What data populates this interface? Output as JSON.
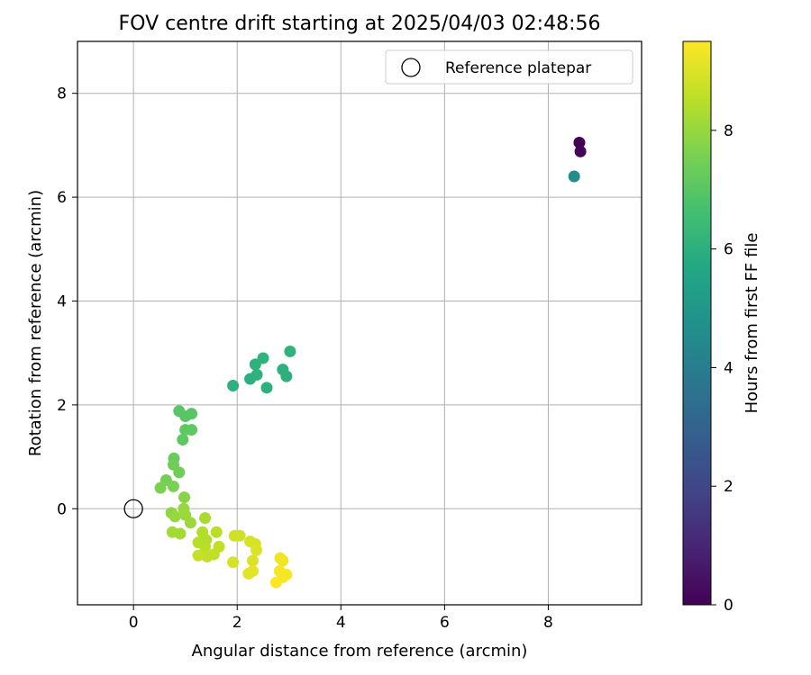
{
  "chart_data": {
    "type": "scatter",
    "title": "FOV centre drift starting at 2025/04/03 02:48:56",
    "xlabel": "Angular distance from reference (arcmin)",
    "ylabel": "Rotation from reference (arcmin)",
    "xlim": [
      -1.08,
      9.8
    ],
    "ylim": [
      -1.85,
      9.0
    ],
    "xticks": [
      0,
      2,
      4,
      6,
      8
    ],
    "yticks": [
      0,
      2,
      4,
      6,
      8
    ],
    "grid": true,
    "legend": {
      "position": "top-right",
      "entries": [
        "Reference platepar"
      ]
    },
    "reference_point": {
      "name": "Reference platepar",
      "x": 0,
      "y": 0,
      "marker": "hollow-circle"
    },
    "colorbar": {
      "label": "Hours from first FF file",
      "range": [
        0,
        9.5
      ],
      "ticks": [
        0,
        2,
        4,
        6,
        8
      ],
      "colormap": "viridis"
    },
    "series": [
      {
        "name": "FOV centre",
        "colored_by": "Hours from first FF file",
        "points": [
          {
            "x": 8.6,
            "y": 7.05,
            "c": 0.0
          },
          {
            "x": 8.62,
            "y": 6.88,
            "c": 0.1
          },
          {
            "x": 8.5,
            "y": 6.4,
            "c": 4.6
          },
          {
            "x": 1.92,
            "y": 2.37,
            "c": 6.0
          },
          {
            "x": 2.25,
            "y": 2.5,
            "c": 6.0
          },
          {
            "x": 2.35,
            "y": 2.78,
            "c": 6.0
          },
          {
            "x": 2.38,
            "y": 2.58,
            "c": 6.1
          },
          {
            "x": 2.5,
            "y": 2.9,
            "c": 6.1
          },
          {
            "x": 2.57,
            "y": 2.33,
            "c": 6.0
          },
          {
            "x": 2.88,
            "y": 2.68,
            "c": 6.0
          },
          {
            "x": 2.95,
            "y": 2.55,
            "c": 6.0
          },
          {
            "x": 3.02,
            "y": 3.03,
            "c": 6.1
          },
          {
            "x": 0.88,
            "y": 1.88,
            "c": 7.0
          },
          {
            "x": 1.0,
            "y": 1.78,
            "c": 7.0
          },
          {
            "x": 1.12,
            "y": 1.83,
            "c": 7.0
          },
          {
            "x": 1.0,
            "y": 1.52,
            "c": 7.1
          },
          {
            "x": 1.12,
            "y": 1.52,
            "c": 7.1
          },
          {
            "x": 0.95,
            "y": 1.33,
            "c": 7.1
          },
          {
            "x": 0.78,
            "y": 0.97,
            "c": 7.3
          },
          {
            "x": 0.77,
            "y": 0.85,
            "c": 7.4
          },
          {
            "x": 0.88,
            "y": 0.7,
            "c": 7.4
          },
          {
            "x": 0.63,
            "y": 0.55,
            "c": 7.5
          },
          {
            "x": 0.52,
            "y": 0.4,
            "c": 7.6
          },
          {
            "x": 0.77,
            "y": 0.43,
            "c": 7.6
          },
          {
            "x": 0.98,
            "y": 0.22,
            "c": 7.8
          },
          {
            "x": 0.73,
            "y": -0.08,
            "c": 7.9
          },
          {
            "x": 0.8,
            "y": -0.15,
            "c": 8.0
          },
          {
            "x": 0.97,
            "y": 0.0,
            "c": 8.0
          },
          {
            "x": 1.0,
            "y": -0.12,
            "c": 8.1
          },
          {
            "x": 1.1,
            "y": -0.27,
            "c": 8.1
          },
          {
            "x": 0.75,
            "y": -0.45,
            "c": 8.2
          },
          {
            "x": 0.9,
            "y": -0.48,
            "c": 8.2
          },
          {
            "x": 1.38,
            "y": -0.18,
            "c": 8.3
          },
          {
            "x": 1.33,
            "y": -0.45,
            "c": 8.4
          },
          {
            "x": 1.4,
            "y": -0.6,
            "c": 8.4
          },
          {
            "x": 1.25,
            "y": -0.65,
            "c": 8.5
          },
          {
            "x": 1.38,
            "y": -0.73,
            "c": 8.5
          },
          {
            "x": 1.6,
            "y": -0.45,
            "c": 8.5
          },
          {
            "x": 1.65,
            "y": -0.73,
            "c": 8.6
          },
          {
            "x": 1.55,
            "y": -0.88,
            "c": 8.6
          },
          {
            "x": 1.42,
            "y": -0.92,
            "c": 8.6
          },
          {
            "x": 1.25,
            "y": -0.9,
            "c": 8.7
          },
          {
            "x": 1.95,
            "y": -0.52,
            "c": 8.8
          },
          {
            "x": 2.05,
            "y": -0.52,
            "c": 8.8
          },
          {
            "x": 2.25,
            "y": -0.63,
            "c": 8.9
          },
          {
            "x": 2.35,
            "y": -0.68,
            "c": 8.9
          },
          {
            "x": 2.37,
            "y": -0.8,
            "c": 9.0
          },
          {
            "x": 2.3,
            "y": -1.0,
            "c": 9.0
          },
          {
            "x": 1.92,
            "y": -1.03,
            "c": 8.9
          },
          {
            "x": 2.3,
            "y": -1.2,
            "c": 9.1
          },
          {
            "x": 2.22,
            "y": -1.25,
            "c": 9.1
          },
          {
            "x": 2.83,
            "y": -0.95,
            "c": 9.3
          },
          {
            "x": 2.88,
            "y": -1.0,
            "c": 9.3
          },
          {
            "x": 2.82,
            "y": -1.2,
            "c": 9.4
          },
          {
            "x": 2.95,
            "y": -1.27,
            "c": 9.4
          },
          {
            "x": 2.88,
            "y": -1.32,
            "c": 9.4
          },
          {
            "x": 2.75,
            "y": -1.42,
            "c": 9.5
          }
        ]
      }
    ]
  }
}
